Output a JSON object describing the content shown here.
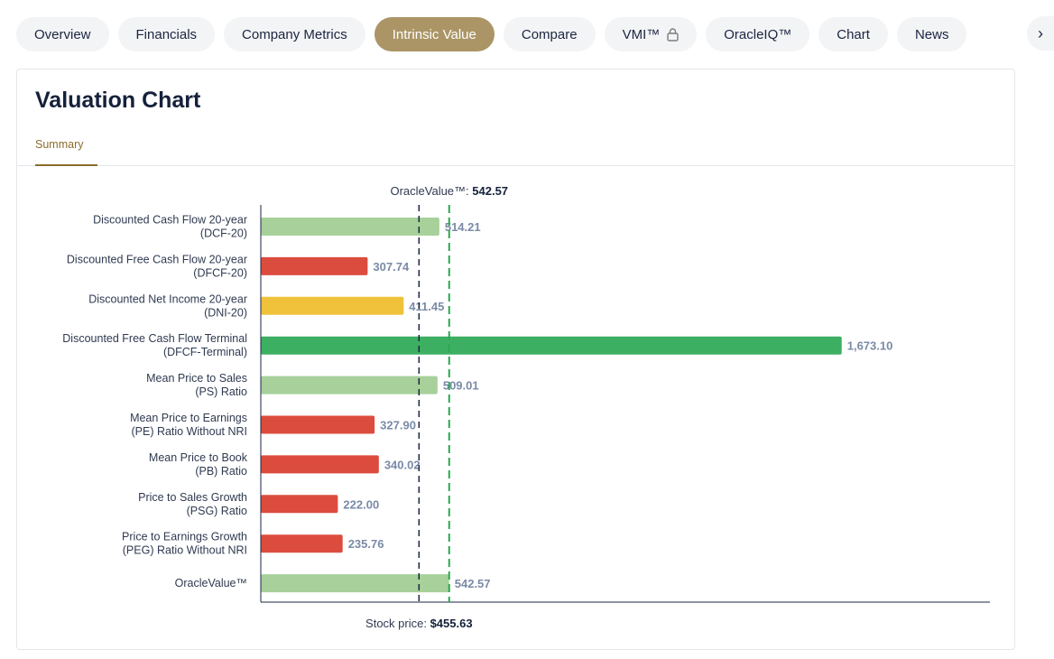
{
  "tabs": [
    {
      "label": "Overview",
      "active": false
    },
    {
      "label": "Financials",
      "active": false
    },
    {
      "label": "Company Metrics",
      "active": false
    },
    {
      "label": "Intrinsic Value",
      "active": true
    },
    {
      "label": "Compare",
      "active": false
    },
    {
      "label": "VMI™",
      "active": false,
      "locked": true
    },
    {
      "label": "OracleIQ™",
      "active": false
    },
    {
      "label": "Chart",
      "active": false
    },
    {
      "label": "News",
      "active": false
    }
  ],
  "tabs_more_icon": "chevron-right-icon",
  "card": {
    "title": "Valuation Chart",
    "subtab": "Summary"
  },
  "colors": {
    "accent": "#ab9566",
    "light_green": "#a7d09a",
    "green": "#3daf62",
    "red": "#dc4c3e",
    "yellow": "#f0c23b",
    "value_label": "#7a8aa6",
    "stock_line": "#1b2540",
    "oracle_line": "#2aa84f"
  },
  "chart_data": {
    "type": "bar",
    "orientation": "horizontal",
    "categories": [
      [
        "Discounted Cash Flow 20-year",
        "(DCF-20)"
      ],
      [
        "Discounted Free Cash Flow 20-year",
        "(DFCF-20)"
      ],
      [
        "Discounted Net Income 20-year",
        "(DNI-20)"
      ],
      [
        "Discounted Free Cash Flow Terminal",
        "(DFCF-Terminal)"
      ],
      [
        "Mean Price to Sales",
        "(PS) Ratio"
      ],
      [
        "Mean Price to Earnings",
        "(PE) Ratio Without NRI"
      ],
      [
        "Mean Price to Book",
        "(PB) Ratio"
      ],
      [
        "Price to Sales Growth",
        "(PSG) Ratio"
      ],
      [
        "Price to Earnings Growth",
        "(PEG) Ratio Without NRI"
      ],
      [
        "OracleValue™"
      ]
    ],
    "values": [
      514.21,
      307.74,
      411.45,
      1673.1,
      509.01,
      327.9,
      340.02,
      222.0,
      235.76,
      542.57
    ],
    "value_labels": [
      "514.21",
      "307.74",
      "411.45",
      "1,673.10",
      "509.01",
      "327.90",
      "340.02",
      "222.00",
      "235.76",
      "542.57"
    ],
    "bar_colors": [
      "light_green",
      "red",
      "yellow",
      "green",
      "light_green",
      "red",
      "red",
      "red",
      "red",
      "light_green"
    ],
    "xlim": [
      0,
      2100
    ],
    "reference_lines": {
      "oracle_value": {
        "label": "OracleValue™:",
        "value": 542.57,
        "value_text": "542.57"
      },
      "stock_price": {
        "label": "Stock price:",
        "value": 455.63,
        "value_text": "$455.63"
      }
    }
  }
}
